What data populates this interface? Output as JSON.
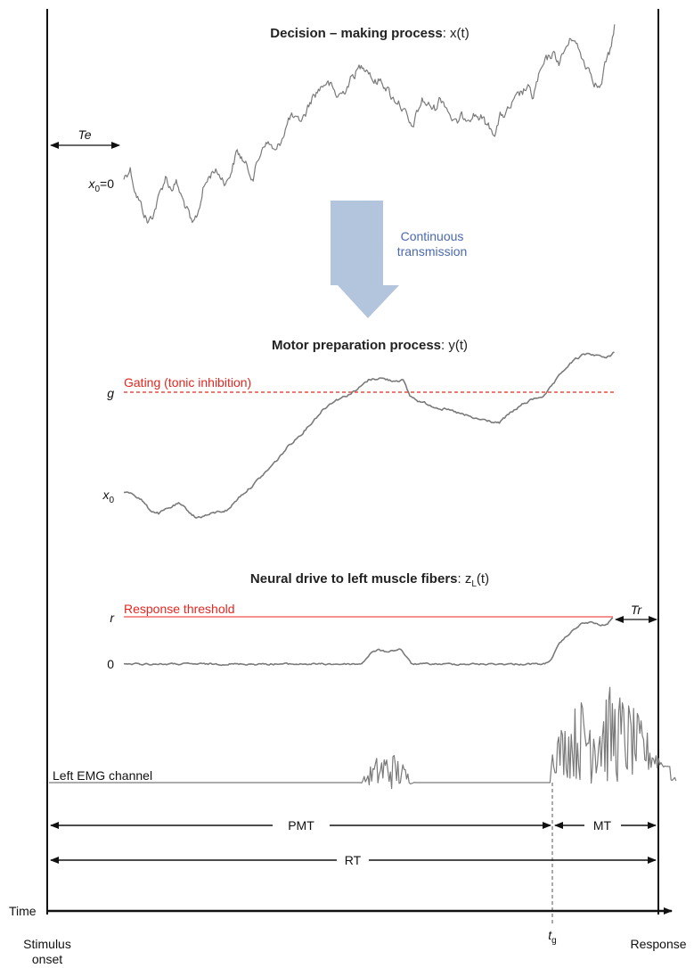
{
  "titles": {
    "decision_bold": "Decision – making process",
    "decision_var": ": x(t)",
    "motor_bold": "Motor preparation process",
    "motor_var": ": y(t)",
    "drive_bold": "Neural drive to left muscle fibers",
    "drive_var": ": z",
    "drive_sub": "L",
    "drive_end": "(t)"
  },
  "labels": {
    "te": "Te",
    "x0_eq_main": "x",
    "x0_eq_sub": "0",
    "x0_eq_tail": "=0",
    "transmission_1": "Continuous",
    "transmission_2": "transmission",
    "g": "g",
    "gating": "Gating (tonic inhibition)",
    "x0_main": "x",
    "x0_sub": "0",
    "r": "r",
    "threshold": "Response threshold",
    "tr": "Tr",
    "zero": "0",
    "emg": "Left EMG channel",
    "pmt": "PMT",
    "mt": "MT",
    "rt": "RT",
    "time": "Time",
    "stimulus_1": "Stimulus",
    "stimulus_2": "onset",
    "tg_main": "t",
    "tg_sub": "g",
    "response": "Response"
  },
  "colors": {
    "trace": "#7a7a7a",
    "gating": "#e8261e",
    "threshold": "#e8261e",
    "arrow_fill": "#b3c4dd",
    "transmission_text": "#4a69b0",
    "axis": "#111111"
  },
  "icons": {
    "transmission_arrow": "down-arrow-icon"
  }
}
